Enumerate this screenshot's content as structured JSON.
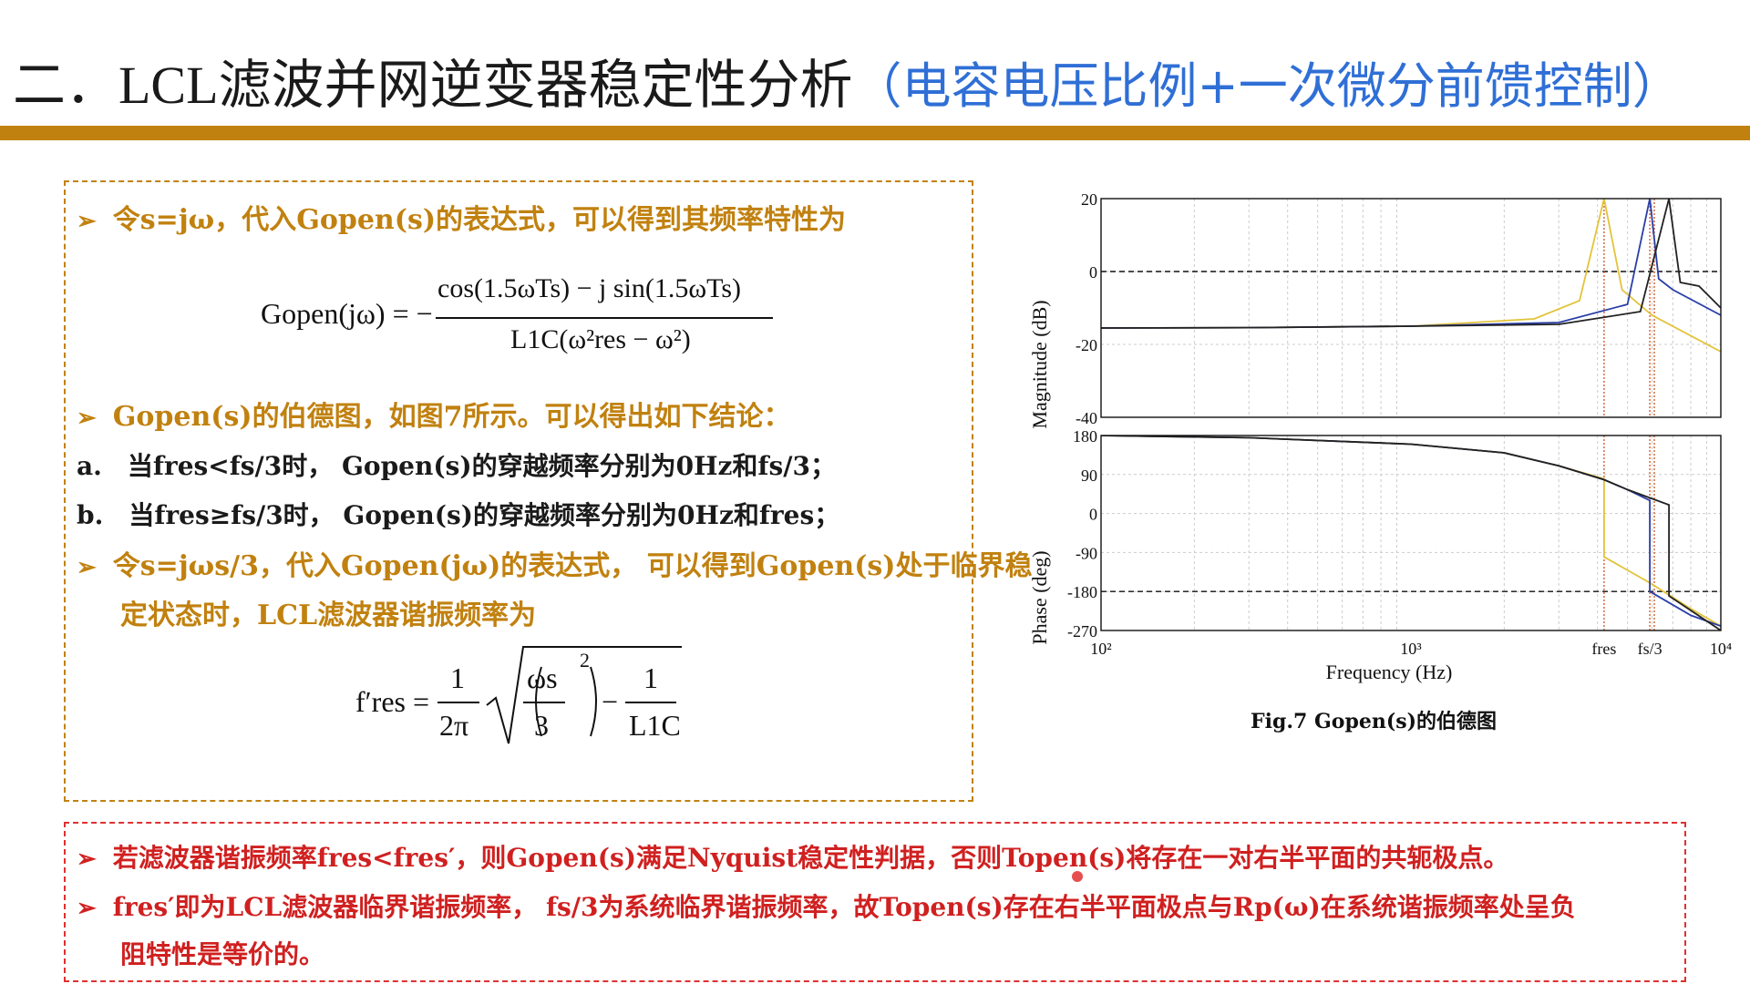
{
  "title": {
    "main": "二．LCL滤波并网逆变器稳定性分析",
    "sub": "（电容电压比例+一次微分前馈控制）"
  },
  "box1": {
    "line1": "令s=jω，代入Gopen(s)的表达式，可以得到其频率特性为",
    "eq1_lhs": "Gopen(jω) = −",
    "eq1_num": "cos(1.5ωTs) − j sin(1.5ωTs)",
    "eq1_den": "L1C(ω²res − ω²)",
    "line2": "Gopen(s)的伯德图，如图7所示。可以得出如下结论：",
    "line_a_label": "a.",
    "line_a": "当fres<fs/3时， Gopen(s)的穿越频率分别为0Hz和fs/3；",
    "line_b_label": "b.",
    "line_b": "当fres≥fs/3时， Gopen(s)的穿越频率分别为0Hz和fres；",
    "line3a": "令s=jωs/3，代入Gopen(jω)的表达式， 可以得到Gopen(s)处于临界稳",
    "line3b": "定状态时，LCL滤波器谐振频率为",
    "eq2_lhs": "f′res =",
    "eq2_frac1_num": "1",
    "eq2_frac1_den": "2π",
    "eq2_inner_num": "ωs",
    "eq2_inner_den": "3",
    "eq2_exp": "2",
    "eq2_minus": "−",
    "eq2_frac2_num": "1",
    "eq2_frac2_den": "L1C"
  },
  "box2": {
    "line1": "若滤波器谐振频率fres<fres′，则Gopen(s)满足Nyquist稳定性判据，否则Topen(s)将存在一对右半平面的共轭极点。",
    "line2a": "fres′即为LCL滤波器临界谐振频率， fs/3为系统临界谐振频率，故Topen(s)存在右半平面极点与Rp(ω)在系统谐振频率处呈负",
    "line2b": "阻特性是等价的。"
  },
  "figure": {
    "caption": "Fig.7  Gopen(s)的伯德图"
  },
  "chart_data": [
    {
      "type": "line",
      "title": "",
      "xlabel": "",
      "ylabel": "Magnitude (dB)",
      "xscale": "log",
      "xlim": [
        100,
        10000
      ],
      "ylim": [
        -40,
        20
      ],
      "yticks": [
        "20",
        "0",
        "-20",
        "-40"
      ],
      "grid": true,
      "reference_line_y": 0,
      "markers_x": [
        "fres",
        "fs/3"
      ],
      "series": [
        {
          "color": "#e3c33a",
          "x": [
            100,
            300,
            1000,
            2500,
            3500,
            4200,
            4800,
            6000,
            10000
          ],
          "y": [
            -15.5,
            -15.4,
            -15,
            -13,
            -8,
            20,
            -5,
            -12,
            -22
          ]
        },
        {
          "color": "#2a3ea8",
          "x": [
            100,
            300,
            1000,
            3000,
            5000,
            5900,
            6300,
            7000,
            10000
          ],
          "y": [
            -15.5,
            -15.4,
            -15,
            -14,
            -9,
            20,
            -2,
            -5,
            -12
          ]
        },
        {
          "color": "#222222",
          "x": [
            100,
            300,
            1000,
            3000,
            5500,
            6800,
            7400,
            8500,
            10000
          ],
          "y": [
            -15.5,
            -15.4,
            -15,
            -14.5,
            -11,
            20,
            -3,
            -4,
            -10
          ]
        }
      ]
    },
    {
      "type": "line",
      "title": "",
      "xlabel": "Frequency (Hz)",
      "ylabel": "Phase (deg)",
      "xscale": "log",
      "xlim": [
        100,
        10000
      ],
      "ylim": [
        -270,
        180
      ],
      "yticks": [
        "180",
        "90",
        "0",
        "-90",
        "-180",
        "-270"
      ],
      "xticks": [
        "10²",
        "10³",
        "fres",
        "fs/3",
        "10⁴"
      ],
      "grid": true,
      "reference_line_y": -180,
      "series": [
        {
          "color": "#e3c33a",
          "x": [
            100,
            300,
            1000,
            2000,
            3000,
            4200,
            4201,
            5900,
            8000,
            10000
          ],
          "y": [
            180,
            175,
            160,
            140,
            110,
            80,
            -100,
            -160,
            -220,
            -260
          ]
        },
        {
          "color": "#2a3ea8",
          "x": [
            100,
            300,
            1000,
            2000,
            3000,
            4200,
            5000,
            5900,
            5901,
            8000,
            10000
          ],
          "y": [
            180,
            175,
            160,
            140,
            110,
            78,
            55,
            30,
            -180,
            -235,
            -260
          ]
        },
        {
          "color": "#222222",
          "x": [
            100,
            300,
            1000,
            2000,
            3000,
            4200,
            5000,
            6800,
            6801,
            10000
          ],
          "y": [
            180,
            175,
            160,
            140,
            110,
            78,
            55,
            20,
            -190,
            -270
          ]
        }
      ]
    }
  ]
}
